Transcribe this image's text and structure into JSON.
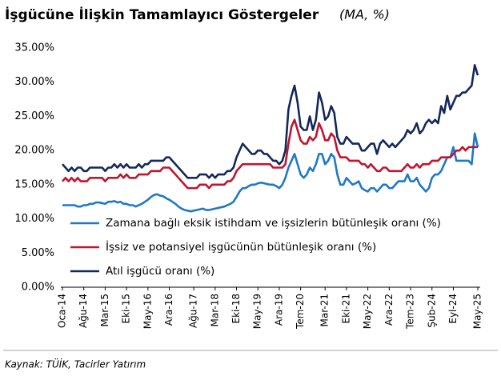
{
  "chart_data": {
    "type": "line",
    "title": "İşgücüne İlişkin Tamamlayıcı Göstergeler",
    "subtitle": "(MA, %)",
    "source": "Kaynak: TÜİK, Tacirler Yatırım",
    "categories": [
      "Oca-14",
      null,
      null,
      null,
      null,
      null,
      null,
      "Ağu-14",
      null,
      null,
      null,
      null,
      null,
      null,
      "Mar-15",
      null,
      null,
      null,
      null,
      null,
      null,
      "Eki-15",
      null,
      null,
      null,
      null,
      null,
      null,
      "May-16",
      null,
      null,
      null,
      null,
      null,
      null,
      "Ara-16",
      null,
      null,
      null,
      null,
      null,
      null,
      null,
      "Ağu-17",
      null,
      null,
      null,
      null,
      null,
      null,
      "Mar-18",
      null,
      null,
      null,
      null,
      null,
      null,
      "Eki-18",
      null,
      null,
      null,
      null,
      null,
      null,
      "May-19",
      null,
      null,
      null,
      null,
      null,
      null,
      "Ara-19",
      null,
      null,
      null,
      null,
      null,
      null,
      "Tem-20",
      null,
      null,
      null,
      null,
      null,
      null,
      null,
      "Mar-21",
      null,
      null,
      null,
      null,
      null,
      null,
      "Eki-21",
      null,
      null,
      null,
      null,
      null,
      null,
      "May-22",
      null,
      null,
      null,
      null,
      null,
      null,
      "Ara-22",
      null,
      null,
      null,
      null,
      null,
      null,
      "Tem-23",
      null,
      null,
      null,
      null,
      null,
      null,
      "Şub-24",
      null,
      null,
      null,
      null,
      null,
      null,
      "Eyl-24",
      null,
      null,
      null,
      null,
      null,
      null,
      null,
      "May-25"
    ],
    "series": [
      {
        "name": "Zamana bağlı eksik istihdam ve işsizlerin bütünleşik oranı (%)",
        "color": "#1f78c8",
        "values": [
          12,
          12,
          12,
          12,
          12,
          11.8,
          11.8,
          12,
          12,
          12.2,
          12.2,
          12.4,
          12.4,
          12.3,
          12.2,
          12.5,
          12.5,
          12.6,
          12.4,
          12.5,
          12.2,
          12.2,
          12,
          12,
          11.8,
          12,
          12.2,
          12.5,
          12.8,
          13.2,
          13.5,
          13.6,
          13.4,
          13.3,
          13,
          12.8,
          12.5,
          12.2,
          11.8,
          11.5,
          11.3,
          11.2,
          11.1,
          11.2,
          11.3,
          11.4,
          11.5,
          11.3,
          11.3,
          11.4,
          11.5,
          11.6,
          11.7,
          11.8,
          12,
          12.2,
          12.5,
          13.2,
          14,
          14.5,
          14.5,
          14.8,
          15,
          15,
          15.2,
          15.3,
          15.2,
          15.1,
          15,
          15,
          14.8,
          14.5,
          15,
          16,
          17.5,
          18.5,
          19.5,
          18,
          16.5,
          16,
          16.5,
          17.5,
          17,
          18,
          19.5,
          19.5,
          18,
          18.5,
          19.5,
          19,
          16.5,
          15,
          15,
          16,
          15.5,
          15,
          15.2,
          15.5,
          14.5,
          14.2,
          14,
          14.5,
          14.5,
          14,
          14.5,
          15,
          15,
          14.5,
          14.5,
          15,
          15.5,
          15.5,
          15.5,
          16.5,
          15.5,
          15.5,
          16,
          15,
          14.5,
          14,
          14.5,
          16,
          16.5,
          16.5,
          17,
          18,
          19,
          19,
          20.5,
          18.5,
          18.5,
          18.5,
          18.5,
          18.5,
          18,
          22.5,
          20.5
        ]
      },
      {
        "name": "İşsiz ve potansiyel işgücünün bütünleşik oranı (%)",
        "color": "#c0152f",
        "values": [
          15.5,
          16,
          15.5,
          16,
          15.5,
          16,
          15.5,
          15.5,
          15.5,
          16,
          16,
          16,
          16,
          16,
          15.5,
          16,
          16,
          16,
          16,
          16.5,
          16,
          16.5,
          16,
          16,
          16,
          16.5,
          16.5,
          16.5,
          16.5,
          17,
          17,
          17,
          17,
          17.5,
          17.5,
          17.5,
          17,
          16.5,
          16,
          15.5,
          15,
          14.5,
          14.5,
          14.5,
          14.5,
          15,
          15,
          15,
          14.5,
          15,
          15,
          15,
          15,
          15,
          15.5,
          15.5,
          16,
          17,
          17.5,
          18,
          18,
          18,
          18,
          18,
          18,
          18,
          18,
          18,
          18,
          17.5,
          17.5,
          17.5,
          17.5,
          18,
          21,
          23.5,
          24.5,
          23,
          21.5,
          21,
          21,
          22,
          21.5,
          22,
          24,
          23,
          21.5,
          21.5,
          22.5,
          22,
          20,
          19,
          19,
          19,
          18.5,
          18.5,
          18.5,
          18.5,
          18,
          18,
          17.5,
          18,
          17.5,
          17,
          17,
          17.5,
          17.5,
          17,
          17,
          17,
          17,
          17,
          17.5,
          18,
          17.5,
          17.5,
          18,
          17.5,
          18,
          18,
          18,
          18.5,
          18.5,
          18.5,
          19,
          19,
          19,
          19,
          19.5,
          20,
          20,
          20.5,
          20,
          20.5,
          20.5,
          20.5,
          20.5
        ]
      },
      {
        "name": "Atıl işgücü oranı (%)",
        "color": "#14285a",
        "values": [
          18,
          17.5,
          17,
          17.5,
          17,
          17.5,
          17.5,
          17,
          17,
          17.5,
          17.5,
          17.5,
          17.5,
          17.5,
          17,
          17.5,
          17.5,
          18,
          17.5,
          18,
          17.5,
          18,
          17.5,
          17.5,
          17.5,
          18,
          17.5,
          18,
          18,
          18.5,
          18.5,
          18.5,
          18.5,
          18.5,
          19,
          19,
          18.5,
          18,
          17.5,
          17,
          16.5,
          16,
          16,
          16,
          16,
          16.5,
          16.5,
          16.5,
          16,
          16.5,
          16,
          16.5,
          16.5,
          16.5,
          17,
          17,
          17.5,
          19,
          20,
          21,
          20.5,
          20,
          19.5,
          19.5,
          20,
          20,
          19.5,
          19.5,
          19,
          18.5,
          18.5,
          18,
          18.5,
          20,
          26,
          28,
          29.5,
          27,
          23.5,
          23,
          23,
          25,
          23,
          24.5,
          28.5,
          27,
          24.5,
          25,
          26.5,
          25.5,
          22,
          21,
          21,
          22,
          21.5,
          21,
          21,
          21,
          20,
          20,
          20.5,
          21,
          21,
          19.5,
          21,
          21.5,
          21,
          20.5,
          21,
          20.5,
          21,
          21.5,
          22,
          23,
          22.5,
          23,
          24,
          22.5,
          23,
          24,
          24.5,
          24,
          24.5,
          24,
          26.5,
          25.5,
          28,
          26,
          27,
          28,
          28,
          28.5,
          28.5,
          29,
          29.5,
          32.5,
          31
        ]
      }
    ],
    "ylim": [
      0,
      35
    ],
    "yticks": [
      {
        "value": 0,
        "label": "0.00%"
      },
      {
        "value": 5,
        "label": "5.00%"
      },
      {
        "value": 10,
        "label": "10.00%"
      },
      {
        "value": 15,
        "label": "15.00%"
      },
      {
        "value": 20,
        "label": "20.00%"
      },
      {
        "value": 25,
        "label": "25.00%"
      },
      {
        "value": 30,
        "label": "30.00%"
      },
      {
        "value": 35,
        "label": "35.00%"
      }
    ],
    "grid": false,
    "legend": "lower-left"
  }
}
